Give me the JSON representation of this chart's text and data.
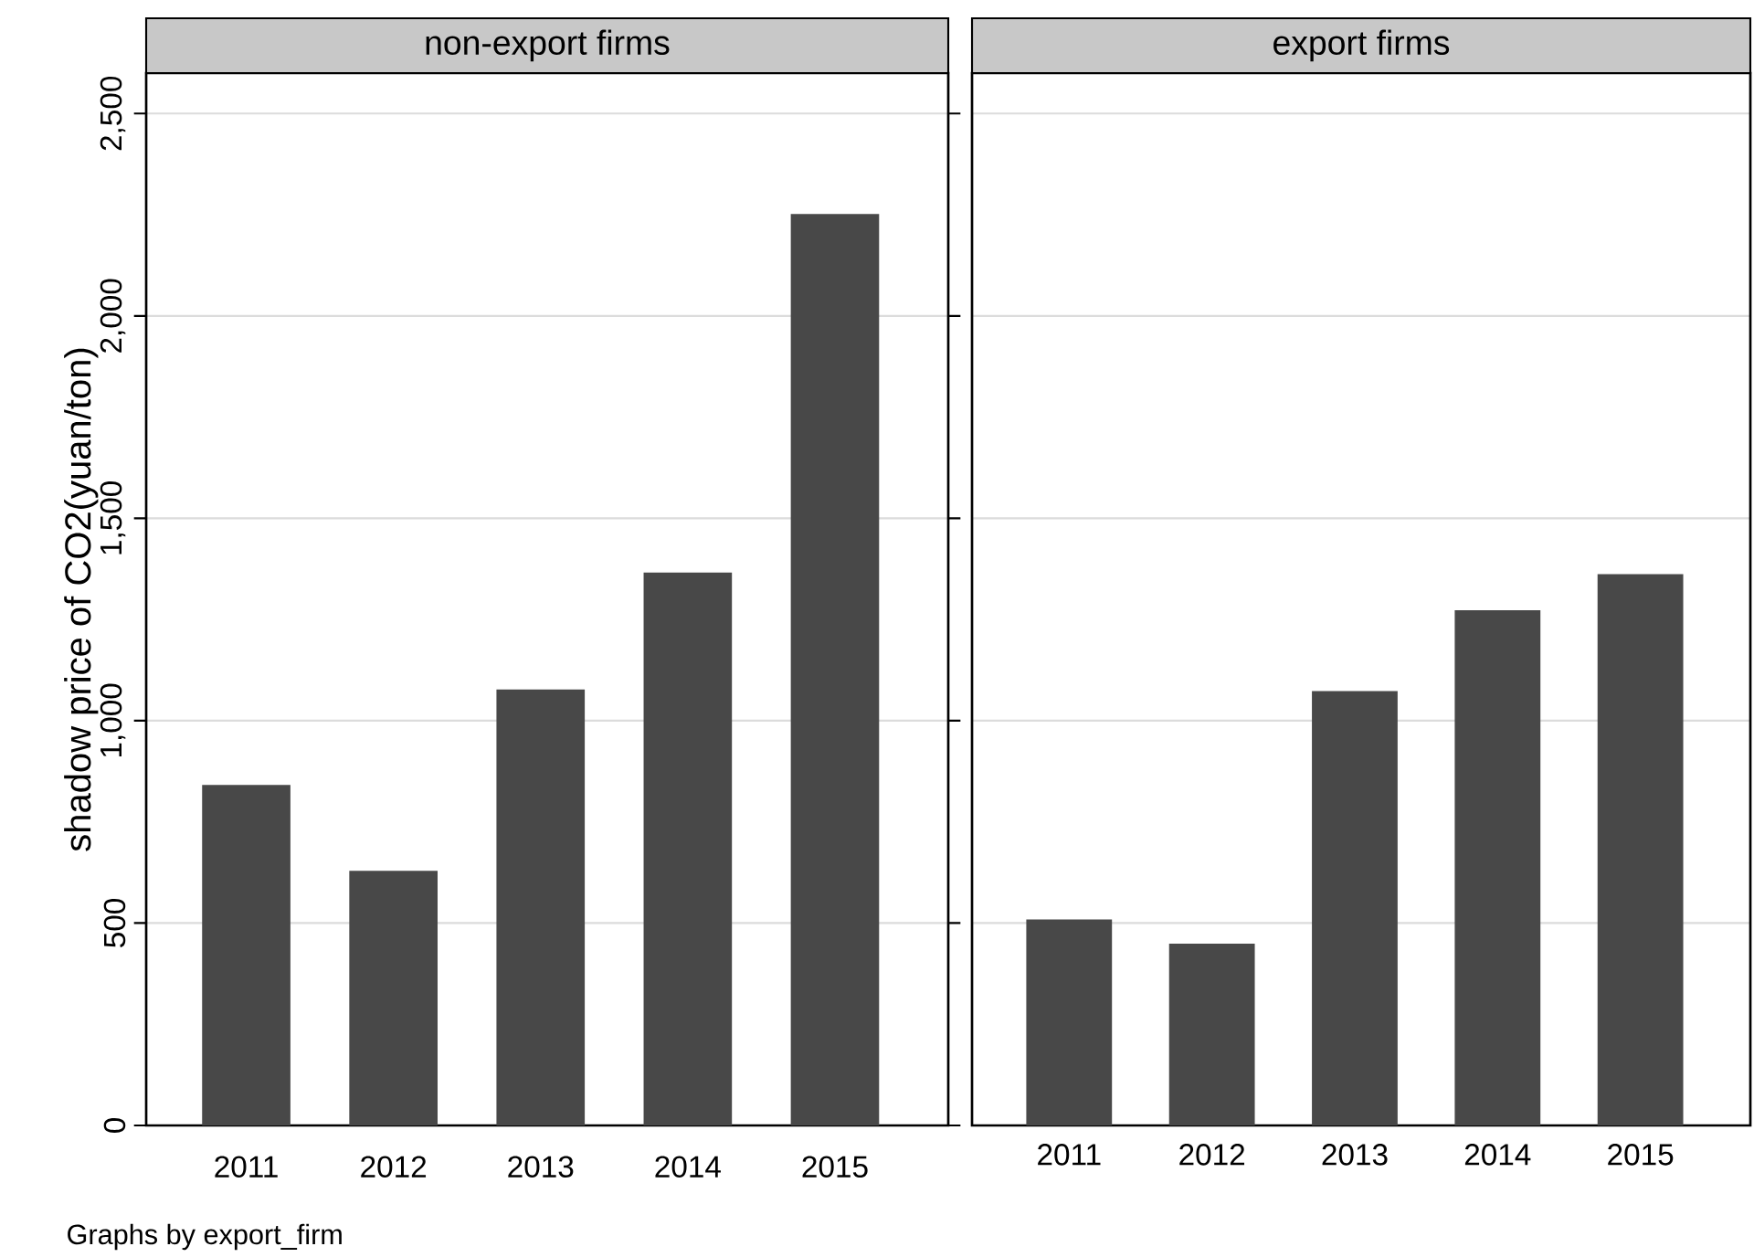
{
  "chart_data": [
    {
      "type": "bar",
      "title": "non-export firms",
      "ylabel": "shadow price of CO2(yuan/ton)",
      "categories": [
        "2011",
        "2012",
        "2013",
        "2014",
        "2015"
      ],
      "values": [
        841,
        629,
        1077,
        1366,
        2252
      ],
      "color": "#484848",
      "ylim": [
        0,
        2600
      ],
      "yticks": [
        0,
        500,
        {
          "value": 1000,
          "label": "1,000"
        },
        {
          "value": 1500,
          "label": "1,500"
        },
        {
          "value": 2000,
          "label": "2,000"
        },
        {
          "value": 2500,
          "label": "2,500"
        }
      ],
      "grid": "y",
      "annotations": [
        "Graphs by export_firm"
      ]
    },
    {
      "type": "bar",
      "title": "export firms",
      "categories": [
        "2011",
        "2012",
        "2013",
        "2014",
        "2015"
      ],
      "values": [
        509,
        449,
        1073,
        1273,
        1362
      ],
      "color": "#484848",
      "ylim": [
        0,
        2600
      ],
      "yticks": [
        {
          "value": 0,
          "label": null
        },
        {
          "value": 500,
          "label": null
        },
        {
          "value": 1000,
          "label": null
        },
        {
          "value": 1500,
          "label": null
        },
        {
          "value": 2000,
          "label": null
        },
        {
          "value": 2500,
          "label": null
        }
      ],
      "grid": "y",
      "tick_labels": "x"
    }
  ]
}
